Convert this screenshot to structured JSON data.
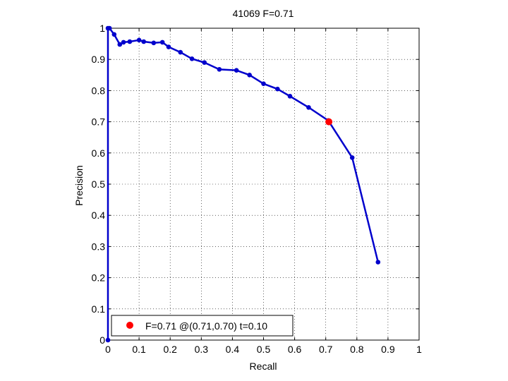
{
  "chart_data": {
    "type": "line",
    "title": "41069 F=0.71",
    "xlabel": "Recall",
    "ylabel": "Precision",
    "xlim": [
      0,
      1
    ],
    "ylim": [
      0,
      1
    ],
    "xticks": [
      "0",
      "0.1",
      "0.2",
      "0.3",
      "0.4",
      "0.5",
      "0.6",
      "0.7",
      "0.8",
      "0.9",
      "1"
    ],
    "yticks": [
      "0",
      "0.1",
      "0.2",
      "0.3",
      "0.4",
      "0.5",
      "0.6",
      "0.7",
      "0.8",
      "0.9",
      "1"
    ],
    "grid": true,
    "legend_position": "bottom-left",
    "series": [
      {
        "color": "#0000cc",
        "x": [
          0,
          0,
          0.005,
          0.02,
          0.038,
          0.05,
          0.07,
          0.1,
          0.115,
          0.147,
          0.175,
          0.195,
          0.233,
          0.27,
          0.31,
          0.358,
          0.413,
          0.455,
          0.5,
          0.545,
          0.585,
          0.645,
          0.708,
          0.785,
          0.868
        ],
        "y": [
          0,
          1,
          1,
          0.98,
          0.948,
          0.955,
          0.957,
          0.962,
          0.957,
          0.953,
          0.955,
          0.94,
          0.923,
          0.902,
          0.89,
          0.868,
          0.865,
          0.85,
          0.822,
          0.805,
          0.782,
          0.746,
          0.704,
          0.585,
          0.25
        ]
      }
    ],
    "highlight": {
      "x": 0.71,
      "y": 0.7,
      "color": "#ff0000"
    },
    "legend": [
      {
        "label": "F=0.71 @(0.71,0.70) t=0.10",
        "color": "#ff0000",
        "marker": "circle"
      }
    ]
  }
}
